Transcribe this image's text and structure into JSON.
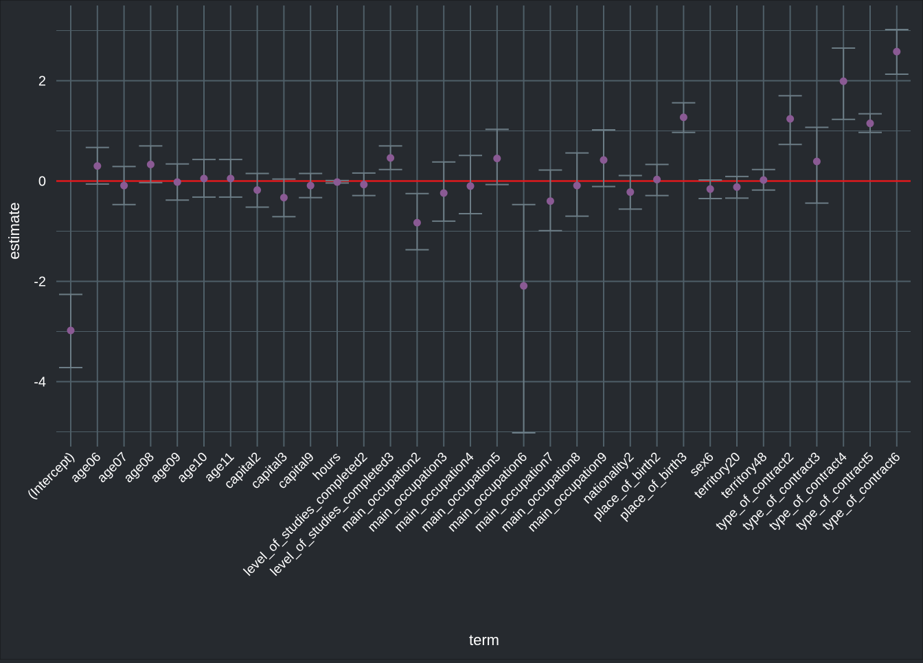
{
  "chart_data": {
    "type": "scatter",
    "title": "",
    "xlabel": "term",
    "ylabel": "estimate",
    "ylim": [
      -5.05,
      3.1
    ],
    "y_ticks": [
      -4,
      -2,
      0,
      2
    ],
    "y_tick_labels": [
      "-4",
      "-2",
      "0",
      "2"
    ],
    "grid": true,
    "reference_line": {
      "y": 0,
      "color": "#e0191d"
    },
    "colors": {
      "background": "#262a2f",
      "grid": "#4f5f68",
      "errorbar": "#6c7d86",
      "point": "#8a5a94",
      "text": "#ffffff"
    },
    "categories": [
      "(Intercept)",
      "age06",
      "age07",
      "age08",
      "age09",
      "age10",
      "age11",
      "capital2",
      "capital3",
      "capital9",
      "hours",
      "level_of_studies_completed2",
      "level_of_studies_completed3",
      "main_occupation2",
      "main_occupation3",
      "main_occupation4",
      "main_occupation5",
      "main_occupation6",
      "main_occupation7",
      "main_occupation8",
      "main_occupation9",
      "nationality2",
      "place_of_birth2",
      "place_of_birth3",
      "sex6",
      "territory20",
      "territory48",
      "type_of_contract2",
      "type_of_contract3",
      "type_of_contract4",
      "type_of_contract5",
      "type_of_contract6"
    ],
    "estimate": [
      -2.98,
      0.3,
      -0.09,
      0.33,
      -0.02,
      0.05,
      0.05,
      -0.18,
      -0.33,
      -0.09,
      -0.02,
      -0.07,
      0.46,
      -0.83,
      -0.24,
      -0.1,
      0.45,
      -2.09,
      -0.4,
      -0.09,
      0.42,
      -0.22,
      0.03,
      1.27,
      -0.16,
      -0.12,
      0.02,
      1.24,
      0.39,
      1.99,
      1.15,
      2.58
    ],
    "lower": [
      -3.72,
      -0.06,
      -0.47,
      -0.03,
      -0.38,
      -0.32,
      -0.32,
      -0.52,
      -0.71,
      -0.33,
      -0.04,
      -0.29,
      0.23,
      -1.37,
      -0.8,
      -0.65,
      -0.07,
      -5.02,
      -0.99,
      -0.7,
      -0.11,
      -0.56,
      -0.29,
      0.97,
      -0.35,
      -0.34,
      -0.18,
      0.73,
      -0.44,
      1.23,
      0.97,
      2.13
    ],
    "upper": [
      -2.26,
      0.67,
      0.29,
      0.7,
      0.34,
      0.43,
      0.43,
      0.15,
      0.04,
      0.15,
      0.01,
      0.16,
      0.7,
      -0.25,
      0.38,
      0.51,
      1.03,
      -0.47,
      0.22,
      0.56,
      1.02,
      0.11,
      0.33,
      1.56,
      0.02,
      0.09,
      0.23,
      1.7,
      1.07,
      2.65,
      1.34,
      3.02
    ]
  }
}
